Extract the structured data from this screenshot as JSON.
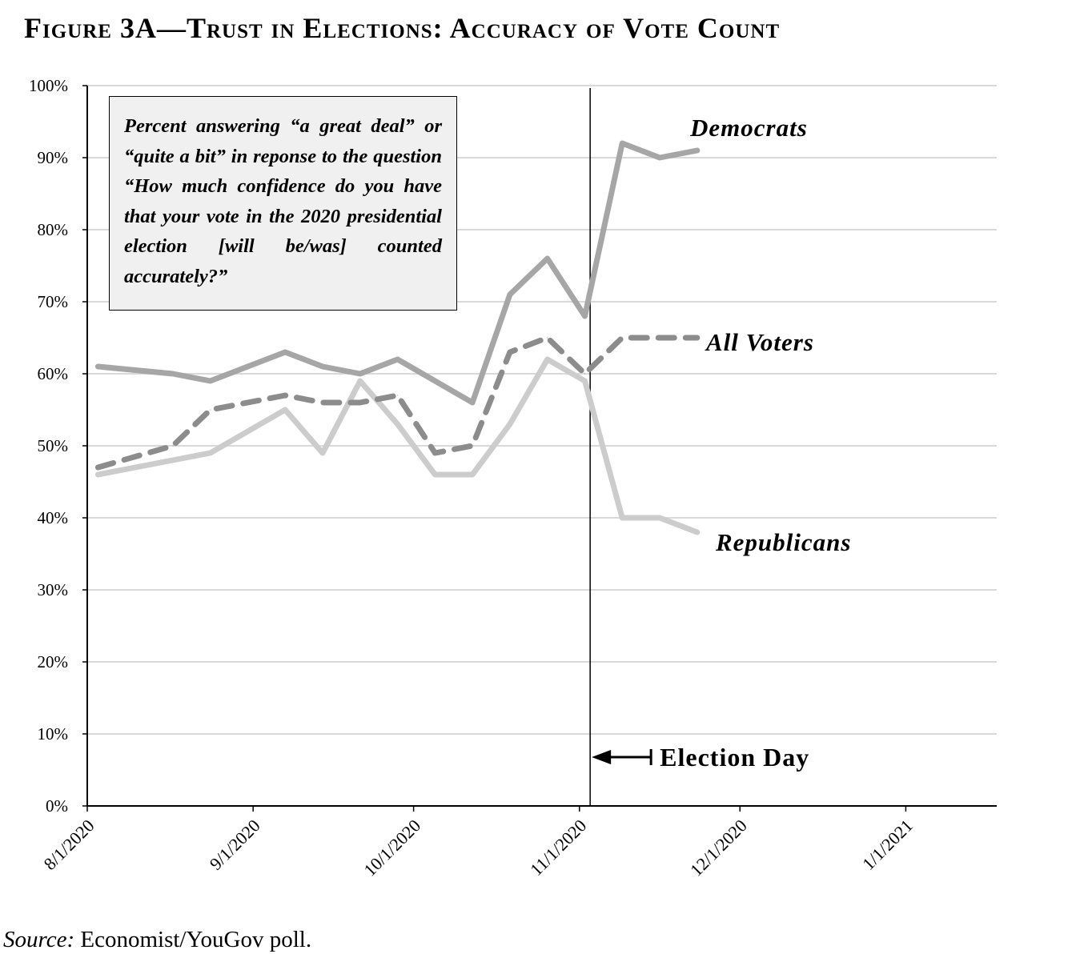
{
  "chart_data": {
    "type": "line",
    "title": "Figure 3A—Trust in Elections: Accuracy of Vote Count",
    "annotation": "Percent answering “a great deal” or “quite a bit” in reponse to the question “How much confidence do you have that your vote in the 2020 presidential election [will be/was] counted accurately?”",
    "source_label": "Source:",
    "source_text": " Economist/YouGov poll.",
    "xlabel": "",
    "ylabel": "",
    "xlim": [
      "2020-08-01",
      "2021-01-18"
    ],
    "ylim": [
      0,
      100
    ],
    "x_ticks": [
      "8/1/2020",
      "9/1/2020",
      "10/1/2020",
      "11/1/2020",
      "12/1/2020",
      "1/1/2021"
    ],
    "x_tick_dates": [
      "2020-08-01",
      "2020-09-01",
      "2020-10-01",
      "2020-11-01",
      "2020-12-01",
      "2021-01-01"
    ],
    "y_ticks": [
      "0%",
      "10%",
      "20%",
      "30%",
      "40%",
      "50%",
      "60%",
      "70%",
      "80%",
      "90%",
      "100%"
    ],
    "y_tick_values": [
      0,
      10,
      20,
      30,
      40,
      50,
      60,
      70,
      80,
      90,
      100
    ],
    "grid": "horizontal",
    "vertical_marker": {
      "date": "2020-11-03",
      "label": "Election Day"
    },
    "series": [
      {
        "name": "Democrats",
        "color": "#a6a6a6",
        "style": "solid",
        "x": [
          "2020-08-03",
          "2020-08-17",
          "2020-08-24",
          "2020-09-07",
          "2020-09-14",
          "2020-09-21",
          "2020-09-28",
          "2020-10-12",
          "2020-10-19",
          "2020-10-26",
          "2020-11-02",
          "2020-11-09",
          "2020-11-16",
          "2020-11-23"
        ],
        "values": [
          61,
          60,
          59,
          63,
          61,
          60,
          62,
          56,
          71,
          76,
          68,
          92,
          90,
          91
        ]
      },
      {
        "name": "All Voters",
        "color": "#8c8c8c",
        "style": "dashed",
        "x": [
          "2020-08-03",
          "2020-08-17",
          "2020-08-24",
          "2020-09-07",
          "2020-09-14",
          "2020-09-21",
          "2020-09-28",
          "2020-10-05",
          "2020-10-12",
          "2020-10-19",
          "2020-10-26",
          "2020-11-02",
          "2020-11-09",
          "2020-11-16",
          "2020-11-23"
        ],
        "values": [
          47,
          50,
          55,
          57,
          56,
          56,
          57,
          49,
          50,
          63,
          65,
          60,
          65,
          65,
          65
        ]
      },
      {
        "name": "Republicans",
        "color": "#cccccc",
        "style": "solid",
        "x": [
          "2020-08-03",
          "2020-08-17",
          "2020-08-24",
          "2020-09-07",
          "2020-09-14",
          "2020-09-21",
          "2020-09-28",
          "2020-10-05",
          "2020-10-12",
          "2020-10-19",
          "2020-10-26",
          "2020-11-02",
          "2020-11-09",
          "2020-11-16",
          "2020-11-23"
        ],
        "values": [
          46,
          48,
          49,
          55,
          49,
          59,
          53,
          46,
          46,
          53,
          62,
          59,
          40,
          40,
          38
        ]
      }
    ]
  }
}
